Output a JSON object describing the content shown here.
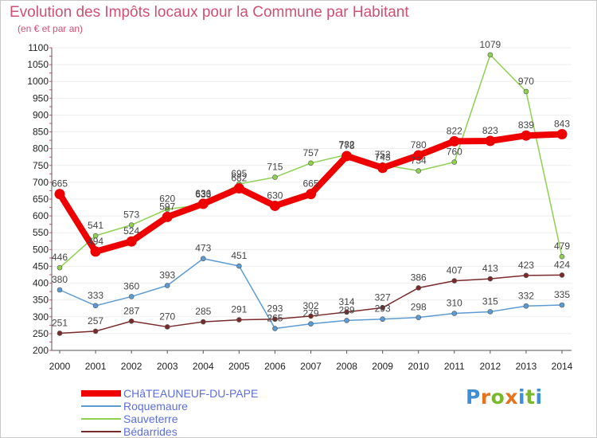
{
  "title": "Evolution des Impôts locaux pour la Commune par Habitant",
  "subtitle": "(en € et par an)",
  "logo": {
    "text": "Proxiti",
    "letters": [
      {
        "ch": "P",
        "color": "#3f8fd6"
      },
      {
        "ch": "r",
        "color": "#e8731c"
      },
      {
        "ch": "o",
        "color": "#7ab82b"
      },
      {
        "ch": "x",
        "color": "#e8731c"
      },
      {
        "ch": "i",
        "color": "#3f8fd6"
      },
      {
        "ch": "t",
        "color": "#7ab82b"
      },
      {
        "ch": "i",
        "color": "#3f8fd6"
      }
    ]
  },
  "colors": {
    "axis": "#555555",
    "grid": "#eeeeee",
    "tick_marks": "#d14f72",
    "title": "#d14f72",
    "legend_text": "#5b6ee1"
  },
  "chart_data": {
    "type": "line",
    "x": [
      2000,
      2001,
      2002,
      2003,
      2004,
      2005,
      2006,
      2007,
      2008,
      2009,
      2010,
      2011,
      2012,
      2013,
      2014
    ],
    "ylim": [
      200,
      1100
    ],
    "yticks": [
      200,
      250,
      300,
      350,
      400,
      450,
      500,
      550,
      600,
      650,
      700,
      750,
      800,
      850,
      900,
      950,
      1000,
      1050,
      1100
    ],
    "grid": true,
    "legend_position": "bottom-left",
    "series": [
      {
        "name": "CHâTEAUNEUF-DU-PAPE",
        "color": "#ee0000",
        "emphasis": true,
        "values": [
          665,
          494,
          524,
          597,
          636,
          682,
          630,
          665,
          778,
          743,
          780,
          822,
          823,
          839,
          843
        ],
        "labels": [
          "665",
          "494",
          "524",
          "597",
          "636",
          "682",
          "630",
          "665",
          "778",
          "743",
          "780",
          "822",
          "823",
          "839",
          "843"
        ]
      },
      {
        "name": "Roquemaure",
        "color": "#5b9bd5",
        "values": [
          380,
          333,
          360,
          393,
          473,
          451,
          265,
          279,
          289,
          293,
          298,
          310,
          315,
          332,
          335
        ],
        "labels": [
          "380",
          "333",
          "360",
          "393",
          "473",
          "451",
          "265",
          "279",
          "289",
          "293",
          "298",
          "310",
          "315",
          "332",
          "335"
        ]
      },
      {
        "name": "Sauveterre",
        "color": "#8ed14f",
        "values": [
          446,
          541,
          573,
          620,
          633,
          695,
          715,
          757,
          782,
          752,
          734,
          760,
          1079,
          970,
          479
        ],
        "labels": [
          "446",
          "541",
          "573",
          "620",
          "633",
          "695",
          "715",
          "757",
          "782",
          "752",
          "734",
          "760",
          "1079",
          "970",
          "479"
        ]
      },
      {
        "name": "Bédarrides",
        "color": "#7a2a2a",
        "values": [
          251,
          257,
          287,
          270,
          285,
          291,
          293,
          302,
          314,
          327,
          386,
          407,
          413,
          423,
          424
        ],
        "labels": [
          "251",
          "257",
          "287",
          "270",
          "285",
          "291",
          "293",
          "302",
          "314",
          "327",
          "386",
          "407",
          "413",
          "423",
          "424"
        ]
      }
    ]
  }
}
